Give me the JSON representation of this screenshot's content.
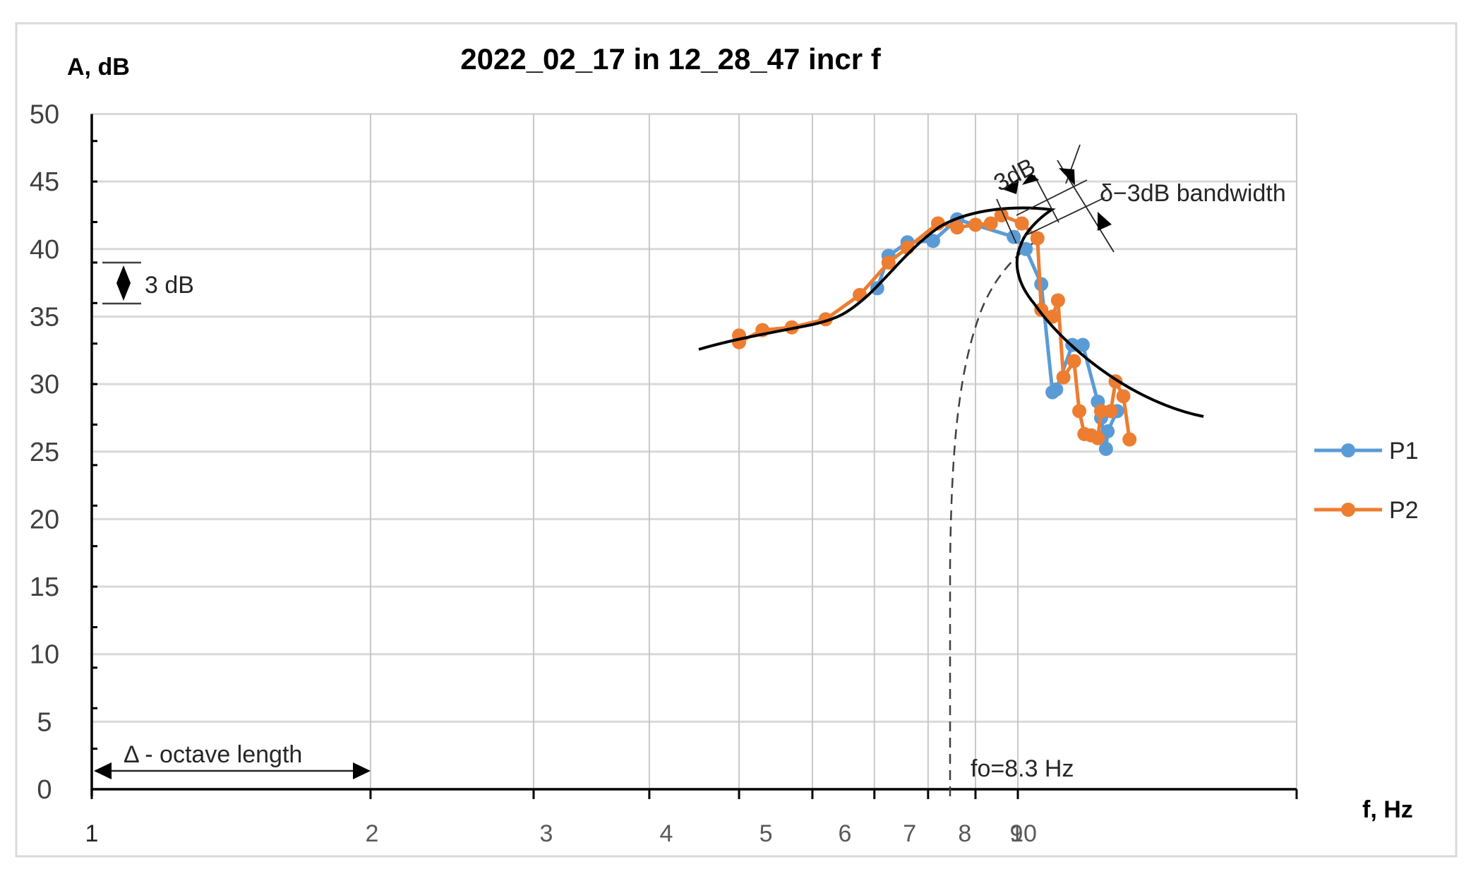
{
  "chart_data": {
    "type": "line",
    "title": "2022_02_17 in 12_28_47 incr f",
    "xlabel": "f, Hz",
    "ylabel": "A, dB",
    "xscale": "log",
    "xlim": [
      1,
      20
    ],
    "ylim": [
      0,
      50
    ],
    "grid": true,
    "legend_position": "right",
    "x_ticks": [
      1,
      2,
      3,
      4,
      5,
      6,
      7,
      8,
      9,
      10
    ],
    "x_tick_labels": [
      "1",
      "2",
      "3",
      "4",
      "5",
      "6",
      "7",
      "8",
      "9",
      "10"
    ],
    "y_ticks": [
      0,
      5,
      10,
      15,
      20,
      25,
      30,
      35,
      40,
      45,
      50
    ],
    "y_tick_labels": [
      "0",
      "5",
      "10",
      "15",
      "20",
      "25",
      "30",
      "35",
      "40",
      "45",
      "50"
    ],
    "series": [
      {
        "name": "P1",
        "color": "#5b9bd5",
        "points": [
          [
            7.05,
            37.1
          ],
          [
            7.25,
            39.5
          ],
          [
            7.6,
            40.5
          ],
          [
            8.1,
            40.6
          ],
          [
            8.6,
            42.2
          ],
          [
            9.9,
            40.9
          ],
          [
            10.2,
            40.0
          ],
          [
            10.6,
            37.4
          ],
          [
            10.9,
            29.4
          ],
          [
            11.0,
            29.6
          ],
          [
            11.45,
            32.9
          ],
          [
            11.75,
            32.9
          ],
          [
            12.2,
            28.7
          ],
          [
            12.3,
            27.5
          ],
          [
            12.45,
            25.2
          ],
          [
            12.5,
            26.5
          ],
          [
            12.8,
            28.0
          ]
        ]
      },
      {
        "name": "P2",
        "color": "#ed7d31",
        "points": [
          [
            5.0,
            33.6
          ],
          [
            5.0,
            33.1
          ],
          [
            5.3,
            34.0
          ],
          [
            5.7,
            34.2
          ],
          [
            6.2,
            34.8
          ],
          [
            6.75,
            36.6
          ],
          [
            7.25,
            39.0
          ],
          [
            7.6,
            40.1
          ],
          [
            8.2,
            41.9
          ],
          [
            8.6,
            41.6
          ],
          [
            9.0,
            41.8
          ],
          [
            9.35,
            41.9
          ],
          [
            9.6,
            42.5
          ],
          [
            10.1,
            41.9
          ],
          [
            10.5,
            40.8
          ],
          [
            10.6,
            35.5
          ],
          [
            10.9,
            35.0
          ],
          [
            11.05,
            36.2
          ],
          [
            11.2,
            30.5
          ],
          [
            11.5,
            31.7
          ],
          [
            11.65,
            28.0
          ],
          [
            11.8,
            26.3
          ],
          [
            12.0,
            26.2
          ],
          [
            12.2,
            26.0
          ],
          [
            12.3,
            28.0
          ],
          [
            12.6,
            28.0
          ],
          [
            12.75,
            30.2
          ],
          [
            13.0,
            29.1
          ],
          [
            13.2,
            25.9
          ]
        ]
      }
    ],
    "fit_curve": {
      "description": "Black hand-drawn resonance curve (backbone / skewed resonance)",
      "points": [
        [
          4.5,
          32.6
        ],
        [
          5.0,
          33.4
        ],
        [
          5.5,
          34.0
        ],
        [
          6.0,
          34.5
        ],
        [
          6.3,
          35.2
        ],
        [
          6.8,
          37.2
        ],
        [
          7.3,
          39.4
        ],
        [
          8.0,
          41.4
        ],
        [
          8.8,
          42.5
        ],
        [
          9.6,
          42.9
        ],
        [
          10.4,
          43.0
        ],
        [
          10.1,
          41.3
        ],
        [
          10.0,
          40.0
        ],
        [
          10.1,
          37.0
        ],
        [
          10.6,
          34.5
        ],
        [
          11.5,
          31.5
        ],
        [
          12.5,
          29.5
        ],
        [
          13.5,
          28.0
        ]
      ]
    },
    "backbone_curve": {
      "style": "dashed",
      "points": [
        [
          8.3,
          0
        ],
        [
          8.35,
          25
        ],
        [
          8.6,
          35
        ],
        [
          9.2,
          39.5
        ],
        [
          10.0,
          42.0
        ]
      ]
    },
    "annotations": [
      {
        "text": "3 dB",
        "kind": "scale-marker",
        "from": 36,
        "to": 39
      },
      {
        "text": "Δ - octave length",
        "kind": "arrow",
        "from_f": 1,
        "to_f": 2,
        "y": 1.2
      },
      {
        "text": "fo=8.3 Hz",
        "kind": "label",
        "f": 8.3
      },
      {
        "text": "3dB",
        "kind": "rotated-label",
        "near_f": 9.5
      },
      {
        "text": "δ–3dB bandwidth",
        "kind": "label",
        "near_f": 12
      }
    ]
  },
  "labels": {
    "title": "2022_02_17 in 12_28_47 incr f",
    "y_axis_title": "A, dB",
    "x_axis_title": "f, Hz",
    "scale_marker": "3 dB",
    "octave": "Δ - octave length",
    "fo": "fo=8.3 Hz",
    "three_db": "3dB",
    "bandwidth": "δ−3dB bandwidth",
    "legend_p1": "P1",
    "legend_p2": "P2"
  }
}
